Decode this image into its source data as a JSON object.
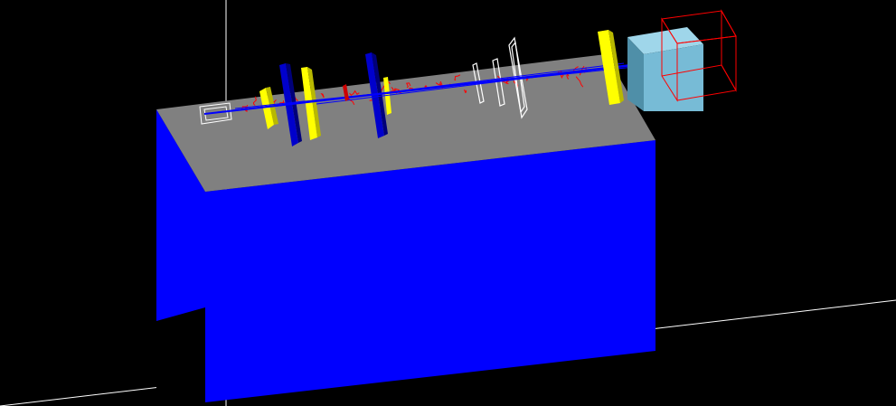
{
  "scene": {
    "background": "#000000",
    "colors": {
      "axis": "#ffffff",
      "table_top": "#808080",
      "table_side": "#0000ff",
      "table_shadow_gap": "#000000",
      "yellow_plate": "#ffff00",
      "yellow_plate_shade": "#b8b800",
      "blue_plate": "#0000cc",
      "blue_plate_shade": "#00007a",
      "detector_box": "#77bbd6",
      "detector_box_shade": "#4f8fa8",
      "wire_frame": "#ff0000",
      "white_frame": "#ffffff",
      "beam": "#0000ff",
      "trajectories": "#ff0000"
    },
    "components": [
      {
        "name": "source-wireframe",
        "kind": "white wireframe box"
      },
      {
        "name": "yellow-plate-1",
        "kind": "yellow plate"
      },
      {
        "name": "blue-plate-1",
        "kind": "blue plate"
      },
      {
        "name": "yellow-plate-2",
        "kind": "yellow plate"
      },
      {
        "name": "blue-plate-2",
        "kind": "blue plate"
      },
      {
        "name": "yellow-plate-3",
        "kind": "yellow plate"
      },
      {
        "name": "white-frame-1",
        "kind": "white wireframe"
      },
      {
        "name": "white-frame-2",
        "kind": "white wireframe"
      },
      {
        "name": "white-frame-3",
        "kind": "white wireframe"
      },
      {
        "name": "yellow-plate-4",
        "kind": "yellow plate"
      },
      {
        "name": "detector-box",
        "kind": "light blue solid box"
      },
      {
        "name": "world-volume-wireframe",
        "kind": "red wireframe cube"
      }
    ]
  }
}
